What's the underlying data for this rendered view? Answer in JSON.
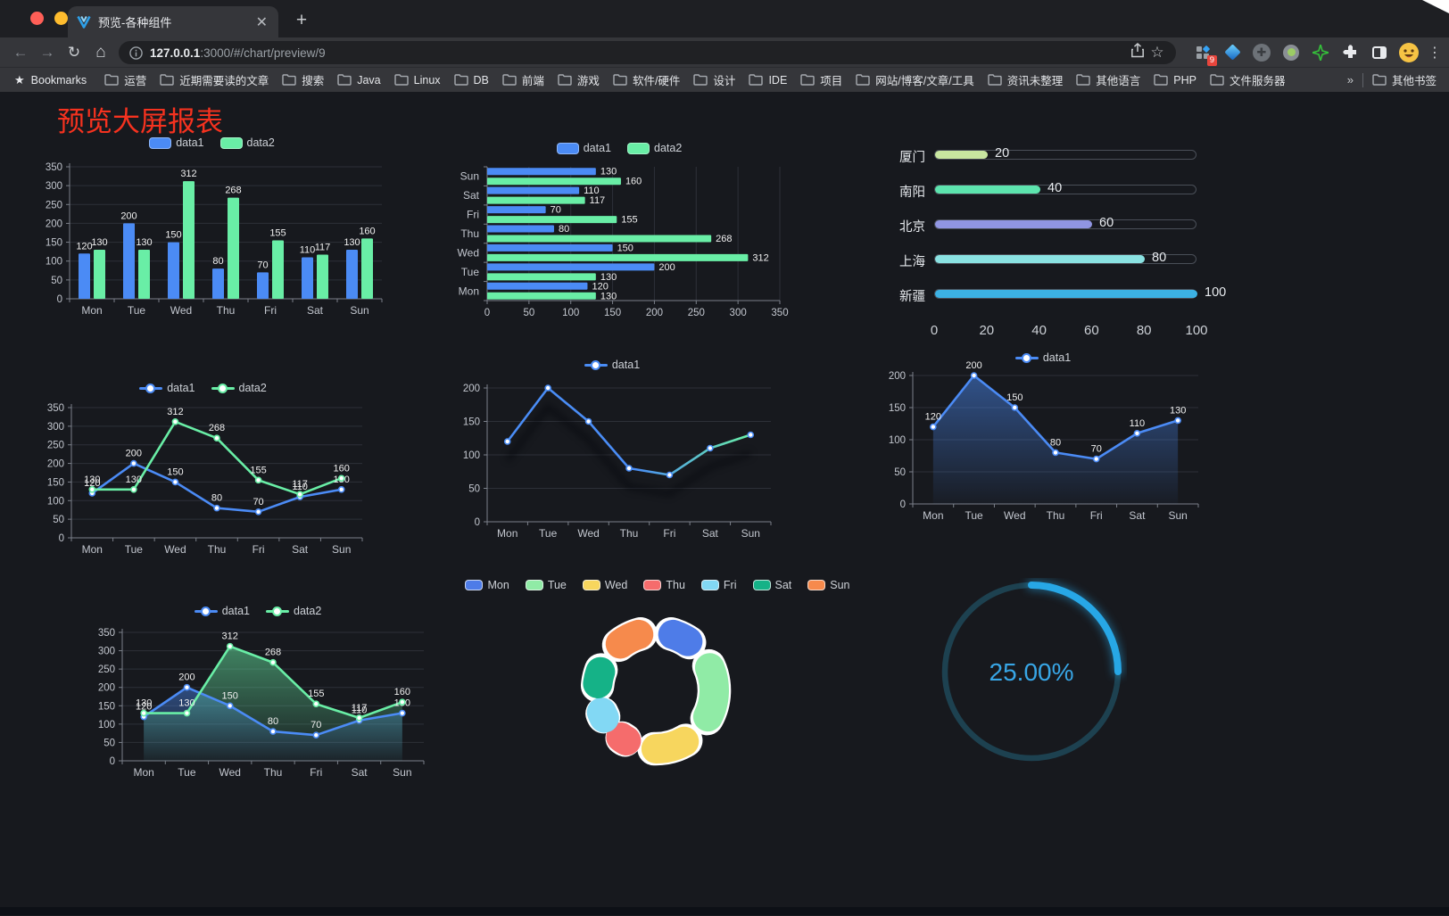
{
  "browser": {
    "tab_title": "预览-各种组件",
    "url_host": "127.0.0.1",
    "url_rest": ":3000/#/chart/preview/9",
    "extension_badge": "9",
    "bookmarks_label": "Bookmarks",
    "bookmarks": [
      "运营",
      "近期需要读的文章",
      "搜索",
      "Java",
      "Linux",
      "DB",
      "前端",
      "游戏",
      "软件/硬件",
      "设计",
      "IDE",
      "项目",
      "网站/博客/文章/工具",
      "资讯未整理",
      "其他语言",
      "PHP",
      "文件服务器"
    ],
    "bookmarks_overflow": "»",
    "other_bookmarks": "其他书签"
  },
  "page": {
    "title": "预览大屏报表",
    "title_color": "#f5321f"
  },
  "chart_data": [
    {
      "id": "bar-grouped",
      "type": "bar",
      "categories": [
        "Mon",
        "Tue",
        "Wed",
        "Thu",
        "Fri",
        "Sat",
        "Sun"
      ],
      "series": [
        {
          "name": "data1",
          "color": "#4b8bf5",
          "values": [
            120,
            200,
            150,
            80,
            70,
            110,
            130
          ]
        },
        {
          "name": "data2",
          "color": "#69eea6",
          "values": [
            130,
            130,
            312,
            268,
            155,
            117,
            160
          ]
        }
      ],
      "ylim": [
        0,
        350
      ],
      "ystep": 50,
      "legend_position": "top",
      "grid": true,
      "labels": true
    },
    {
      "id": "bar-horizontal",
      "type": "bar-horizontal",
      "categories": [
        "Mon",
        "Tue",
        "Wed",
        "Thu",
        "Fri",
        "Sat",
        "Sun"
      ],
      "display_order": "Sun-at-top",
      "series": [
        {
          "name": "data1",
          "color": "#4b8bf5",
          "values": [
            120,
            200,
            150,
            80,
            70,
            110,
            130
          ]
        },
        {
          "name": "data2",
          "color": "#69eea6",
          "values": [
            130,
            130,
            312,
            268,
            155,
            117,
            160
          ]
        }
      ],
      "xlim": [
        0,
        350
      ],
      "xstep": 50,
      "legend_position": "top",
      "labels": true
    },
    {
      "id": "progress",
      "type": "progress",
      "max": 100,
      "axis_ticks": [
        0,
        20,
        40,
        60,
        80,
        100
      ],
      "items": [
        {
          "label": "厦门",
          "value": 20,
          "color": "#c8e6a0"
        },
        {
          "label": "南阳",
          "value": 40,
          "color": "#5de4ae"
        },
        {
          "label": "北京",
          "value": 60,
          "color": "#9095e2"
        },
        {
          "label": "上海",
          "value": 80,
          "color": "#8ae2e2"
        },
        {
          "label": "新疆",
          "value": 100,
          "color": "#3cb1e3"
        }
      ]
    },
    {
      "id": "line-dual",
      "type": "line",
      "categories": [
        "Mon",
        "Tue",
        "Wed",
        "Thu",
        "Fri",
        "Sat",
        "Sun"
      ],
      "series": [
        {
          "name": "data1",
          "color": "#4b8bf5",
          "values": [
            120,
            200,
            150,
            80,
            70,
            110,
            130
          ],
          "labels": true
        },
        {
          "name": "data2",
          "color": "#69eea6",
          "values": [
            130,
            130,
            312,
            268,
            155,
            117,
            160
          ],
          "labels": true
        }
      ],
      "ylim": [
        0,
        350
      ],
      "ystep": 50,
      "legend_position": "top"
    },
    {
      "id": "line-gradient",
      "type": "line",
      "categories": [
        "Mon",
        "Tue",
        "Wed",
        "Thu",
        "Fri",
        "Sat",
        "Sun"
      ],
      "series": [
        {
          "name": "data1",
          "color": "#4a8df6",
          "gradient": [
            "#4a8df6",
            "#4a8df6",
            "#69eea6"
          ],
          "values": [
            120,
            200,
            150,
            80,
            70,
            110,
            130
          ],
          "labels": false,
          "shadow": true
        }
      ],
      "ylim": [
        0,
        200
      ],
      "ystep": 50,
      "legend_position": "top"
    },
    {
      "id": "line-area",
      "type": "line",
      "categories": [
        "Mon",
        "Tue",
        "Wed",
        "Thu",
        "Fri",
        "Sat",
        "Sun"
      ],
      "series": [
        {
          "name": "data1",
          "color": "#4b8bf5",
          "values": [
            120,
            200,
            150,
            80,
            70,
            110,
            130
          ],
          "labels": true,
          "area": "rgba(75,139,245,0.5)"
        }
      ],
      "ylim": [
        0,
        200
      ],
      "ystep": 50,
      "legend_position": "top"
    },
    {
      "id": "line-dual-area",
      "type": "line",
      "categories": [
        "Mon",
        "Tue",
        "Wed",
        "Thu",
        "Fri",
        "Sat",
        "Sun"
      ],
      "series": [
        {
          "name": "data1",
          "color": "#4b8bf5",
          "values": [
            120,
            200,
            150,
            80,
            70,
            110,
            130
          ],
          "labels": true,
          "area": "rgba(75,139,245,0.45)"
        },
        {
          "name": "data2",
          "color": "#69eea6",
          "values": [
            130,
            130,
            312,
            268,
            155,
            117,
            160
          ],
          "labels": true,
          "area": "rgba(105,238,166,0.5)"
        }
      ],
      "ylim": [
        0,
        350
      ],
      "ystep": 50,
      "legend_position": "top"
    },
    {
      "id": "donut",
      "type": "pie",
      "items": [
        {
          "label": "Mon",
          "value": 120,
          "color": "#4e7ce8"
        },
        {
          "label": "Tue",
          "value": 200,
          "color": "#90eba6"
        },
        {
          "label": "Wed",
          "value": 150,
          "color": "#f7d65e"
        },
        {
          "label": "Thu",
          "value": 80,
          "color": "#f56c6c"
        },
        {
          "label": "Fri",
          "value": 70,
          "color": "#82d8f4"
        },
        {
          "label": "Sat",
          "value": 110,
          "color": "#15b287"
        },
        {
          "label": "Sun",
          "value": 130,
          "color": "#f68a4c"
        }
      ],
      "legend_position": "top"
    },
    {
      "id": "gauge",
      "type": "gauge",
      "value": 25,
      "display": "25.00%",
      "color": "#27a7e6",
      "track_color": "#1d4150"
    }
  ]
}
